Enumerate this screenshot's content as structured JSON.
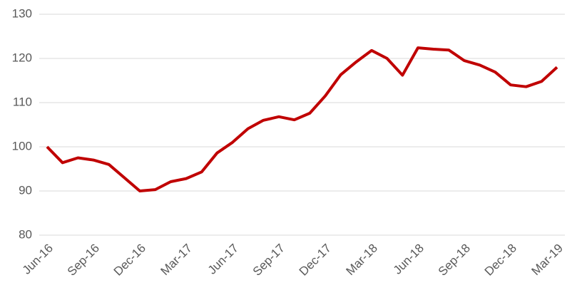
{
  "chart_data": {
    "type": "line",
    "categories": [
      "Jun-16",
      null,
      null,
      "Sep-16",
      null,
      null,
      "Dec-16",
      null,
      null,
      "Mar-17",
      null,
      null,
      "Jun-17",
      null,
      null,
      "Sep-17",
      null,
      null,
      "Dec-17",
      null,
      null,
      "Mar-18",
      null,
      null,
      "Jun-18",
      null,
      null,
      "Sep-18",
      null,
      null,
      "Dec-18",
      null,
      null,
      "Mar-19"
    ],
    "series": [
      {
        "color": "#c00000",
        "values": [
          100,
          96.4,
          97.5,
          97.0,
          96.0,
          93.0,
          90.0,
          90.3,
          92.1,
          92.8,
          94.3,
          98.6,
          101.0,
          104.1,
          106.0,
          106.8,
          106.1,
          107.6,
          111.5,
          116.3,
          119.2,
          121.8,
          120.0,
          116.2,
          122.4,
          122.1,
          121.9,
          119.5,
          118.5,
          116.9,
          114.0,
          113.6,
          114.8,
          118.0
        ]
      }
    ],
    "ylim": [
      80,
      130
    ],
    "yticks": [
      80,
      90,
      100,
      110,
      120,
      130
    ],
    "grid": true
  }
}
